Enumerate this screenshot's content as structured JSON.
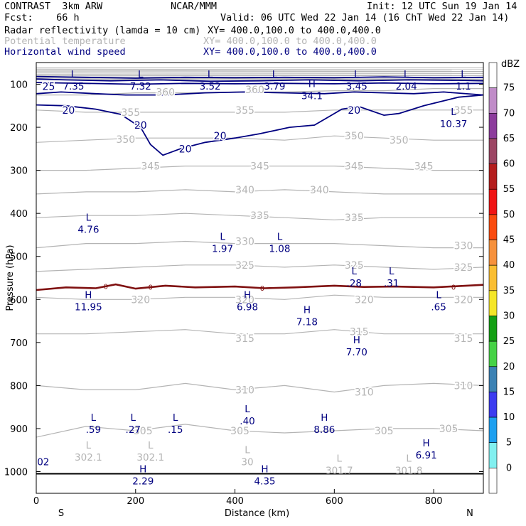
{
  "header": {
    "line1_left": "CONTRAST  3km ARW",
    "line1_mid": "NCAR/MMM",
    "line1_right": "Init: 12 UTC Sun 19 Jan 14",
    "line2_left": "Fcst:    66 h",
    "line2_right": "Valid: 06 UTC Wed 22 Jan 14 (16 ChT Wed 22 Jan 14)",
    "field1_name": "Radar reflectivity (lamda = 10 cm)",
    "field1_xy": "XY= 400.0,100.0 to 400.0,400.0",
    "field2_name": "Potential temperature",
    "field2_xy": "XY= 400.0,100.0 to 400.0,400.0",
    "field3_name": "Horizontal wind speed",
    "field3_xy": "XY= 400.0,100.0 to 400.0,400.0"
  },
  "chart_data": {
    "type": "cross-section",
    "xlabel": "Distance (km)",
    "ylabel": "Pressure (hPa)",
    "xlim": [
      0,
      900
    ],
    "ylim_pressure": [
      1045,
      55
    ],
    "x_ticks": [
      "0",
      "200",
      "400",
      "600",
      "800"
    ],
    "x_tick_values": [
      0,
      200,
      400,
      600,
      800
    ],
    "y_ticks": [
      "100",
      "200",
      "300",
      "400",
      "500",
      "600",
      "700",
      "800",
      "900",
      "1000"
    ],
    "y_tick_values": [
      100,
      200,
      300,
      400,
      500,
      600,
      700,
      800,
      900,
      1000
    ],
    "left_endpoint_label": "S",
    "right_endpoint_label": "N",
    "colorbar": {
      "unit": "dBZ",
      "levels": [
        "75",
        "70",
        "65",
        "60",
        "55",
        "50",
        "45",
        "40",
        "35",
        "30",
        "25",
        "20",
        "15",
        "10",
        "5",
        "0"
      ],
      "colors": [
        "#ffffff",
        "#c08cc8",
        "#8c3c9c",
        "#9c4664",
        "#b41e1e",
        "#f01414",
        "#fa4b0f",
        "#f6913c",
        "#fabe32",
        "#f5e628",
        "#14a014",
        "#46d246",
        "#3c82b4",
        "#3c3cf0",
        "#1ea0f0",
        "#82f0f0",
        "#ffffff"
      ]
    },
    "theta_contours": {
      "series": [
        {
          "name": "305",
          "x": [
            0,
            100,
            200,
            300,
            400,
            500,
            600,
            700,
            800,
            900
          ],
          "p": [
            920,
            895,
            905,
            890,
            905,
            910,
            905,
            900,
            900,
            905
          ]
        },
        {
          "name": "310",
          "x": [
            0,
            100,
            200,
            300,
            400,
            500,
            600,
            700,
            800,
            900
          ],
          "p": [
            800,
            810,
            810,
            795,
            810,
            800,
            815,
            800,
            795,
            800
          ]
        },
        {
          "name": "315",
          "x": [
            0,
            100,
            200,
            300,
            400,
            500,
            600,
            700,
            800,
            900
          ],
          "p": [
            680,
            680,
            675,
            670,
            680,
            680,
            670,
            680,
            680,
            680
          ]
        },
        {
          "name": "320",
          "x": [
            0,
            100,
            200,
            300,
            400,
            500,
            600,
            700,
            800,
            900
          ],
          "p": [
            595,
            600,
            600,
            595,
            595,
            600,
            590,
            595,
            595,
            595
          ]
        },
        {
          "name": "325",
          "x": [
            0,
            100,
            200,
            300,
            400,
            500,
            600,
            700,
            800,
            900
          ],
          "p": [
            535,
            530,
            525,
            520,
            520,
            525,
            520,
            525,
            530,
            525
          ]
        },
        {
          "name": "330",
          "x": [
            0,
            100,
            200,
            300,
            400,
            500,
            600,
            700,
            800,
            900
          ],
          "p": [
            480,
            470,
            470,
            465,
            470,
            470,
            470,
            475,
            480,
            480
          ]
        },
        {
          "name": "335",
          "x": [
            0,
            100,
            200,
            300,
            400,
            500,
            600,
            700,
            800,
            900
          ],
          "p": [
            410,
            405,
            405,
            400,
            405,
            410,
            415,
            410,
            410,
            410
          ]
        },
        {
          "name": "340",
          "x": [
            0,
            100,
            200,
            300,
            400,
            500,
            600,
            700,
            800,
            900
          ],
          "p": [
            355,
            350,
            350,
            345,
            350,
            345,
            350,
            355,
            355,
            355
          ]
        },
        {
          "name": "345",
          "x": [
            0,
            100,
            200,
            300,
            400,
            500,
            600,
            700,
            800,
            900
          ],
          "p": [
            300,
            300,
            295,
            290,
            290,
            290,
            290,
            295,
            300,
            300
          ]
        },
        {
          "name": "350",
          "x": [
            0,
            100,
            200,
            300,
            400,
            500,
            600,
            700,
            800,
            900
          ],
          "p": [
            235,
            230,
            225,
            225,
            225,
            230,
            220,
            225,
            230,
            230
          ]
        },
        {
          "name": "355",
          "x": [
            0,
            100,
            200,
            300,
            400,
            500,
            600,
            700,
            800,
            900
          ],
          "p": [
            160,
            165,
            165,
            165,
            165,
            165,
            160,
            160,
            160,
            160
          ]
        },
        {
          "name": "360",
          "x": [
            0,
            100,
            200,
            300,
            400,
            500,
            600,
            700,
            800,
            900
          ],
          "p": [
            125,
            125,
            120,
            120,
            118,
            118,
            115,
            115,
            110,
            110
          ]
        }
      ],
      "labels": [
        "305",
        "305",
        "305",
        "310",
        "310",
        "315",
        "315",
        "315",
        "320",
        "320",
        "320",
        "320",
        "325",
        "325",
        "325",
        "330",
        "330",
        "335",
        "335",
        "340",
        "340",
        "345",
        "345",
        "345",
        "350",
        "350",
        "355",
        "355",
        "355",
        "360",
        "360"
      ]
    },
    "wind_speed_contours": {
      "labels": [
        "20",
        "20",
        "20",
        "20",
        "20",
        "25"
      ],
      "extrema": [
        {
          "type": "L",
          "value": "7.35"
        },
        {
          "type": "L",
          "value": "7.32"
        },
        {
          "type": "L",
          "value": "3.52"
        },
        {
          "type": "L",
          "value": "3.79"
        },
        {
          "type": "H",
          "value": "34.1"
        },
        {
          "type": "L",
          "value": "3.45"
        },
        {
          "type": "L",
          "value": "2.04"
        },
        {
          "type": "L",
          "value": "1.1"
        },
        {
          "type": "L",
          "value": "10.37"
        },
        {
          "type": "L",
          "value": "4.76"
        },
        {
          "type": "L",
          "value": "1.97"
        },
        {
          "type": "L",
          "value": "1.08"
        },
        {
          "type": "L",
          "value": ".28"
        },
        {
          "type": "L",
          "value": ".31"
        },
        {
          "type": "H",
          "value": "11.95"
        },
        {
          "type": "H",
          "value": "6.98"
        },
        {
          "type": "H",
          "value": "7.18"
        },
        {
          "type": "L",
          "value": ".65"
        },
        {
          "type": "H",
          "value": "7.70"
        },
        {
          "type": "L",
          "value": ".59"
        },
        {
          "type": "L",
          "value": ".27"
        },
        {
          "type": "L",
          "value": ".15"
        },
        {
          "type": "L",
          "value": ".40"
        },
        {
          "type": "H",
          "value": "8.86"
        },
        {
          "type": "H",
          "value": "6.91"
        },
        {
          "type": "H",
          "value": "2.29"
        },
        {
          "type": "H",
          "value": "4.35"
        }
      ],
      "edge_label": "02"
    },
    "theta_extrema": [
      {
        "type": "L",
        "value": "302.1"
      },
      {
        "type": "L",
        "value": "302.1"
      },
      {
        "type": "L",
        "value": "30"
      },
      {
        "type": "L",
        "value": "301.7"
      },
      {
        "type": "L",
        "value": "301.8"
      }
    ],
    "freezing_level": {
      "label": "0",
      "pressure": 570
    }
  }
}
